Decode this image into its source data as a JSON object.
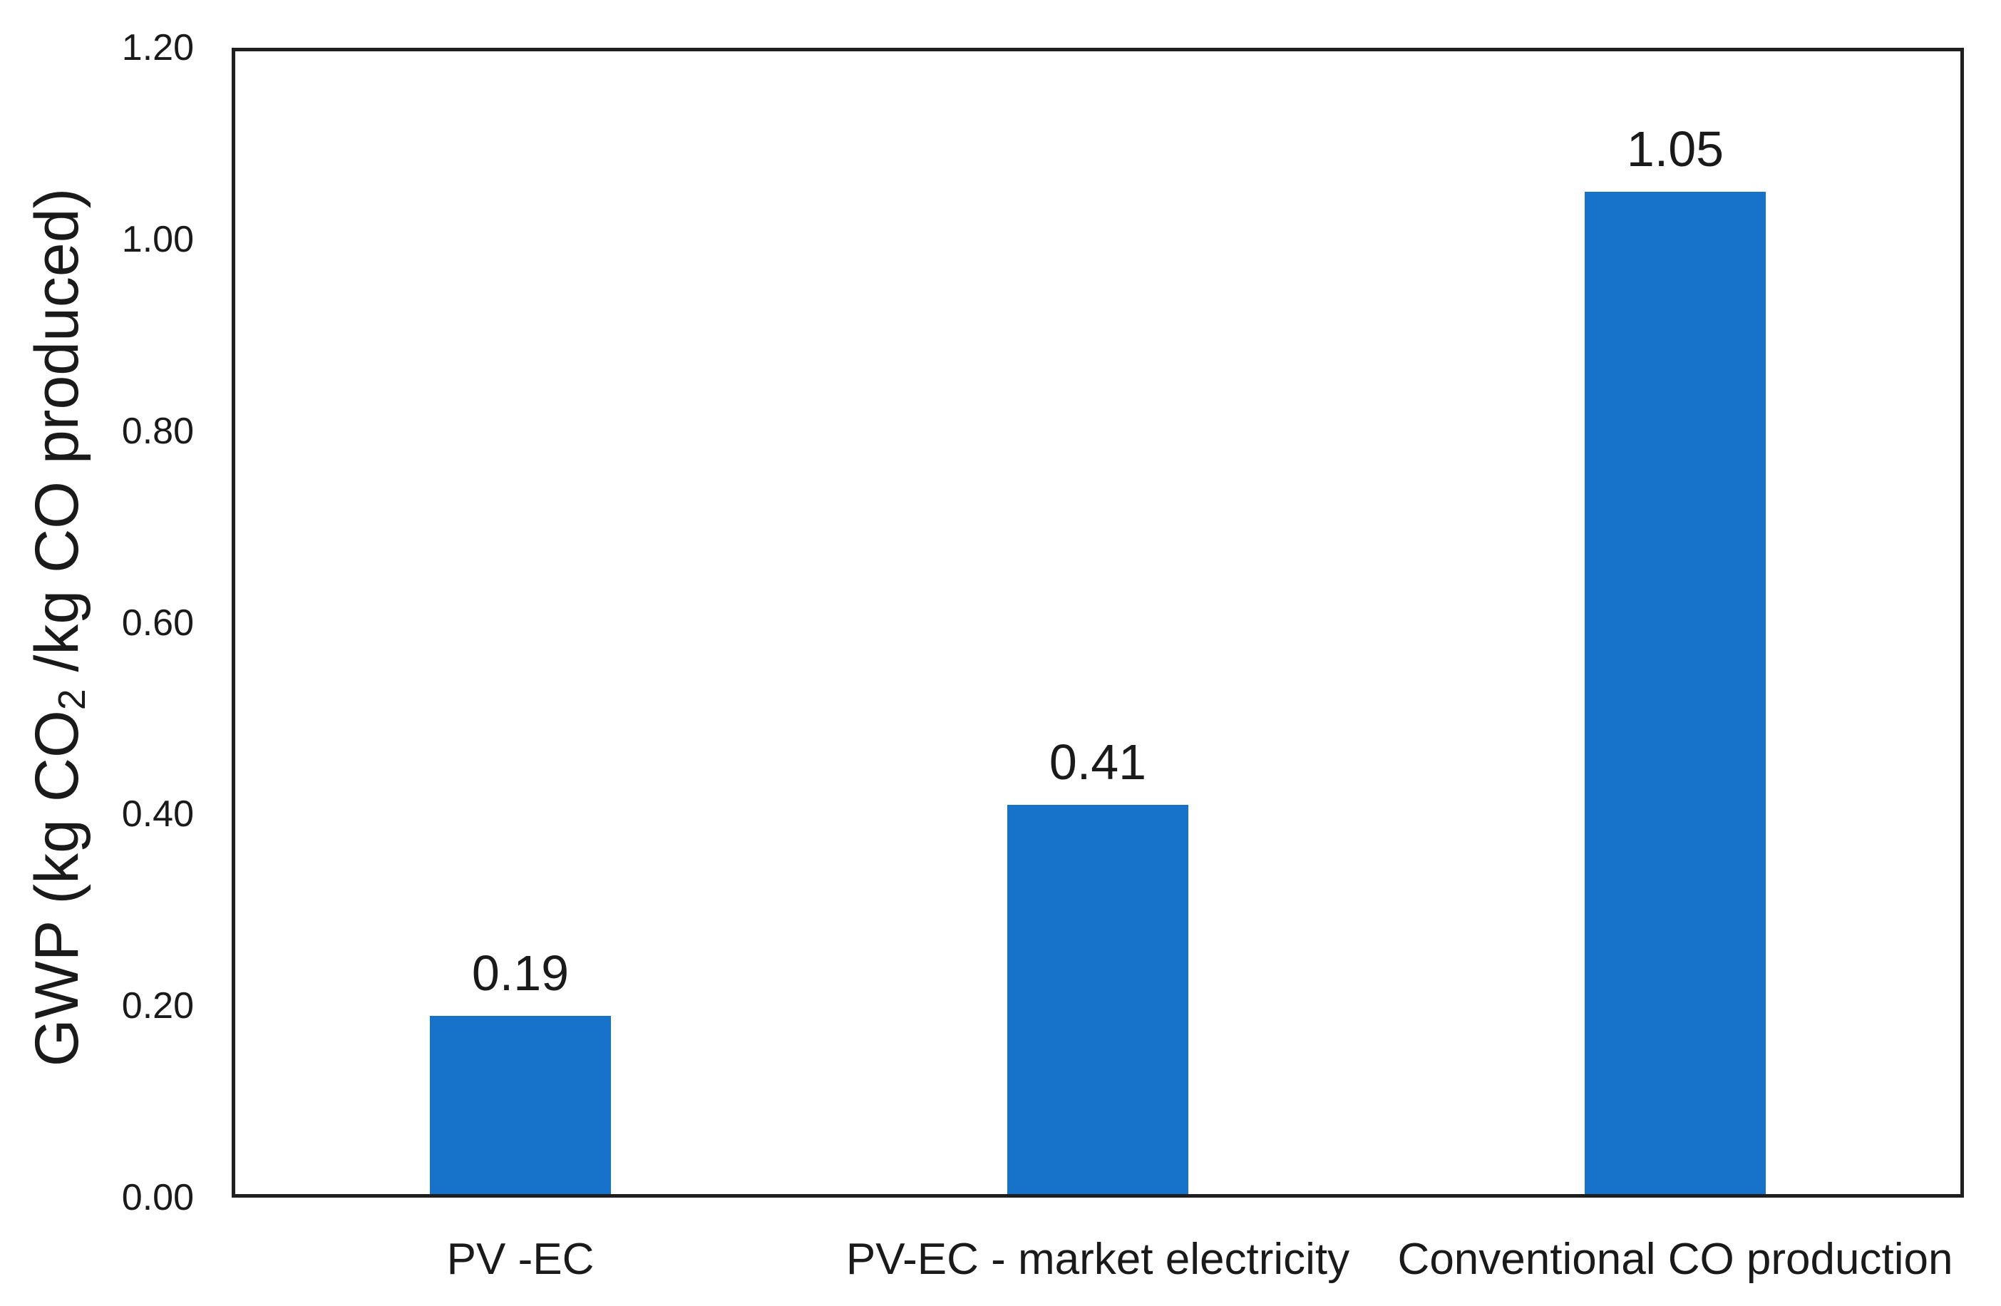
{
  "chart_data": {
    "type": "bar",
    "title": "",
    "xlabel": "",
    "ylabel": "GWP (kg CO2 /kg CO produced)",
    "ylabel_parts": {
      "pre": "GWP (kg CO",
      "sub": "2",
      "post": " /kg CO produced)"
    },
    "categories": [
      "PV -EC",
      "PV-EC - market electricity",
      "Conventional CO production"
    ],
    "values": [
      0.19,
      0.41,
      1.05
    ],
    "bar_labels": [
      "0.19",
      "0.41",
      "1.05"
    ],
    "ylim": [
      0,
      1.2
    ],
    "yticks": [
      {
        "value": 0.0,
        "label": "0.00"
      },
      {
        "value": 0.2,
        "label": "0.20"
      },
      {
        "value": 0.4,
        "label": "0.40"
      },
      {
        "value": 0.6,
        "label": "0.60"
      },
      {
        "value": 0.8,
        "label": "0.80"
      },
      {
        "value": 1.0,
        "label": "1.00"
      },
      {
        "value": 1.2,
        "label": "1.20"
      }
    ],
    "grid": false,
    "legend": "none",
    "colors": {
      "bar": "#1673C9",
      "axis": "#1f1f1f",
      "text": "#000000",
      "background": "#ffffff"
    }
  }
}
